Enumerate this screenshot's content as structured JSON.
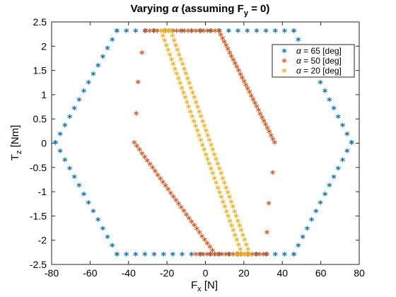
{
  "chart_data": {
    "type": "scatter",
    "title": "Varying α (assuming F_y = 0)",
    "title_parts": {
      "pre": "Varying ",
      "alpha": "α",
      "mid": " (assuming F",
      "sub": "y",
      "post": " = 0)"
    },
    "xlabel": "F_x [N]",
    "xlabel_parts": {
      "main": "F",
      "sub": "x",
      "post": " [N]"
    },
    "ylabel": "T_z [Nm]",
    "ylabel_parts": {
      "main": "T",
      "sub": "z",
      "post": " [Nm]"
    },
    "xlim": [
      -80,
      80
    ],
    "ylim": [
      -2.5,
      2.5
    ],
    "xticks": [
      "-80",
      "-60",
      "-40",
      "-20",
      "0",
      "20",
      "40",
      "60",
      "80"
    ],
    "yticks": [
      "2.5",
      "2",
      "1.5",
      "1",
      "0.5",
      "0",
      "-0.5",
      "-1",
      "-1.5",
      "-2",
      "-2.5"
    ],
    "grid": false,
    "legend_position": "top-right",
    "marker": "*",
    "series": [
      {
        "name": "α = 65 [deg]",
        "color": "#0072bd",
        "segments": [
          {
            "from": [
              -46,
              2.3
            ],
            "to": [
              46,
              2.3
            ],
            "n": 20
          },
          {
            "from": [
              46,
              2.3
            ],
            "to": [
              76,
              0
            ],
            "n": 14
          },
          {
            "from": [
              76,
              0
            ],
            "to": [
              46,
              -2.3
            ],
            "n": 14
          },
          {
            "from": [
              46,
              -2.3
            ],
            "to": [
              -46,
              -2.3
            ],
            "n": 20
          },
          {
            "from": [
              -46,
              -2.3
            ],
            "to": [
              -78,
              0
            ],
            "n": 14
          },
          {
            "from": [
              -78,
              0
            ],
            "to": [
              -46,
              2.3
            ],
            "n": 14
          }
        ],
        "points": []
      },
      {
        "name": "α = 50 [deg]",
        "color": "#d95319",
        "segments": [
          {
            "from": [
              -31,
              2.3
            ],
            "to": [
              7,
              2.3
            ],
            "n": 20
          },
          {
            "from": [
              7,
              2.3
            ],
            "to": [
              36,
              0
            ],
            "n": 32
          },
          {
            "from": [
              5,
              -2.3
            ],
            "to": [
              -37,
              0
            ],
            "n": 32
          },
          {
            "from": [
              -5,
              -2.3
            ],
            "to": [
              32,
              -2.3
            ],
            "n": 20
          }
        ],
        "points": [
          [
            -33,
            1.85
          ],
          [
            -35,
            1.25
          ],
          [
            -36,
            0.6
          ],
          [
            35,
            -0.62
          ],
          [
            33,
            -1.25
          ],
          [
            32,
            -1.85
          ]
        ]
      },
      {
        "name": "α = 20 [deg]",
        "color": "#edb120",
        "segments": [
          {
            "from": [
              -23,
              2.3
            ],
            "to": [
              19,
              -2.3
            ],
            "n": 48
          },
          {
            "from": [
              -18,
              2.3
            ],
            "to": [
              23,
              -2.3
            ],
            "n": 48
          },
          {
            "from": [
              -23,
              2.3
            ],
            "to": [
              -18,
              2.3
            ],
            "n": 5
          },
          {
            "from": [
              16,
              -2.3
            ],
            "to": [
              23,
              -2.3
            ],
            "n": 6
          }
        ],
        "points": []
      }
    ],
    "legend_labels": [
      {
        "alpha": "α",
        "rest": " = 65 [deg]"
      },
      {
        "alpha": "α",
        "rest": " = 50 [deg]"
      },
      {
        "alpha": "α",
        "rest": " = 20 [deg]"
      }
    ]
  }
}
